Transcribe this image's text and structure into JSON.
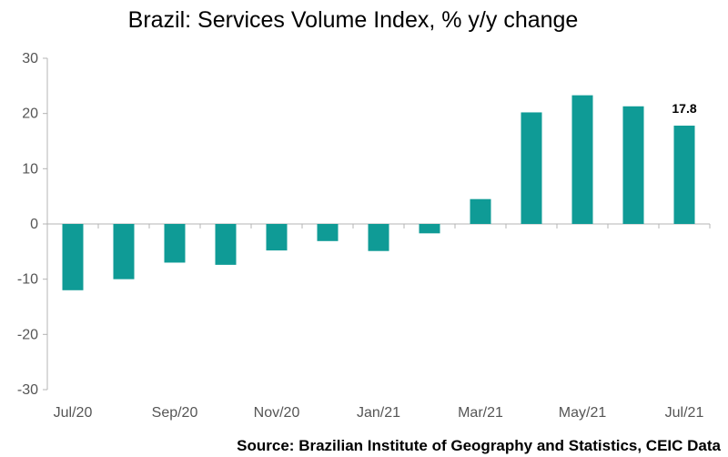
{
  "chart_data": {
    "type": "bar",
    "title": "Brazil: Services Volume Index, % y/y change",
    "source": "Source: Brazilian Institute of Geography and Statistics, CEIC Data",
    "categories": [
      "Jul/20",
      "Aug/20",
      "Sep/20",
      "Oct/20",
      "Nov/20",
      "Dec/20",
      "Jan/21",
      "Feb/21",
      "Mar/21",
      "Apr/21",
      "May/21",
      "Jun/21",
      "Jul/21"
    ],
    "x_tick_labels": [
      "Jul/20",
      "",
      "Sep/20",
      "",
      "Nov/20",
      "",
      "Jan/21",
      "",
      "Mar/21",
      "",
      "May/21",
      "",
      "Jul/21"
    ],
    "values": [
      -12.0,
      -10.0,
      -7.0,
      -7.4,
      -4.8,
      -3.1,
      -4.9,
      -1.7,
      4.5,
      20.2,
      23.3,
      21.3,
      17.8
    ],
    "data_labels": [
      "",
      "",
      "",
      "",
      "",
      "",
      "",
      "",
      "",
      "",
      "",
      "",
      "17.8"
    ],
    "ylim": [
      -30,
      30
    ],
    "yticks": [
      -30,
      -20,
      -10,
      0,
      10,
      20,
      30
    ],
    "xlabel": "",
    "ylabel": "",
    "grid": false,
    "colors": {
      "bar": "#0f9b96",
      "axis": "#b4b4b4"
    }
  }
}
